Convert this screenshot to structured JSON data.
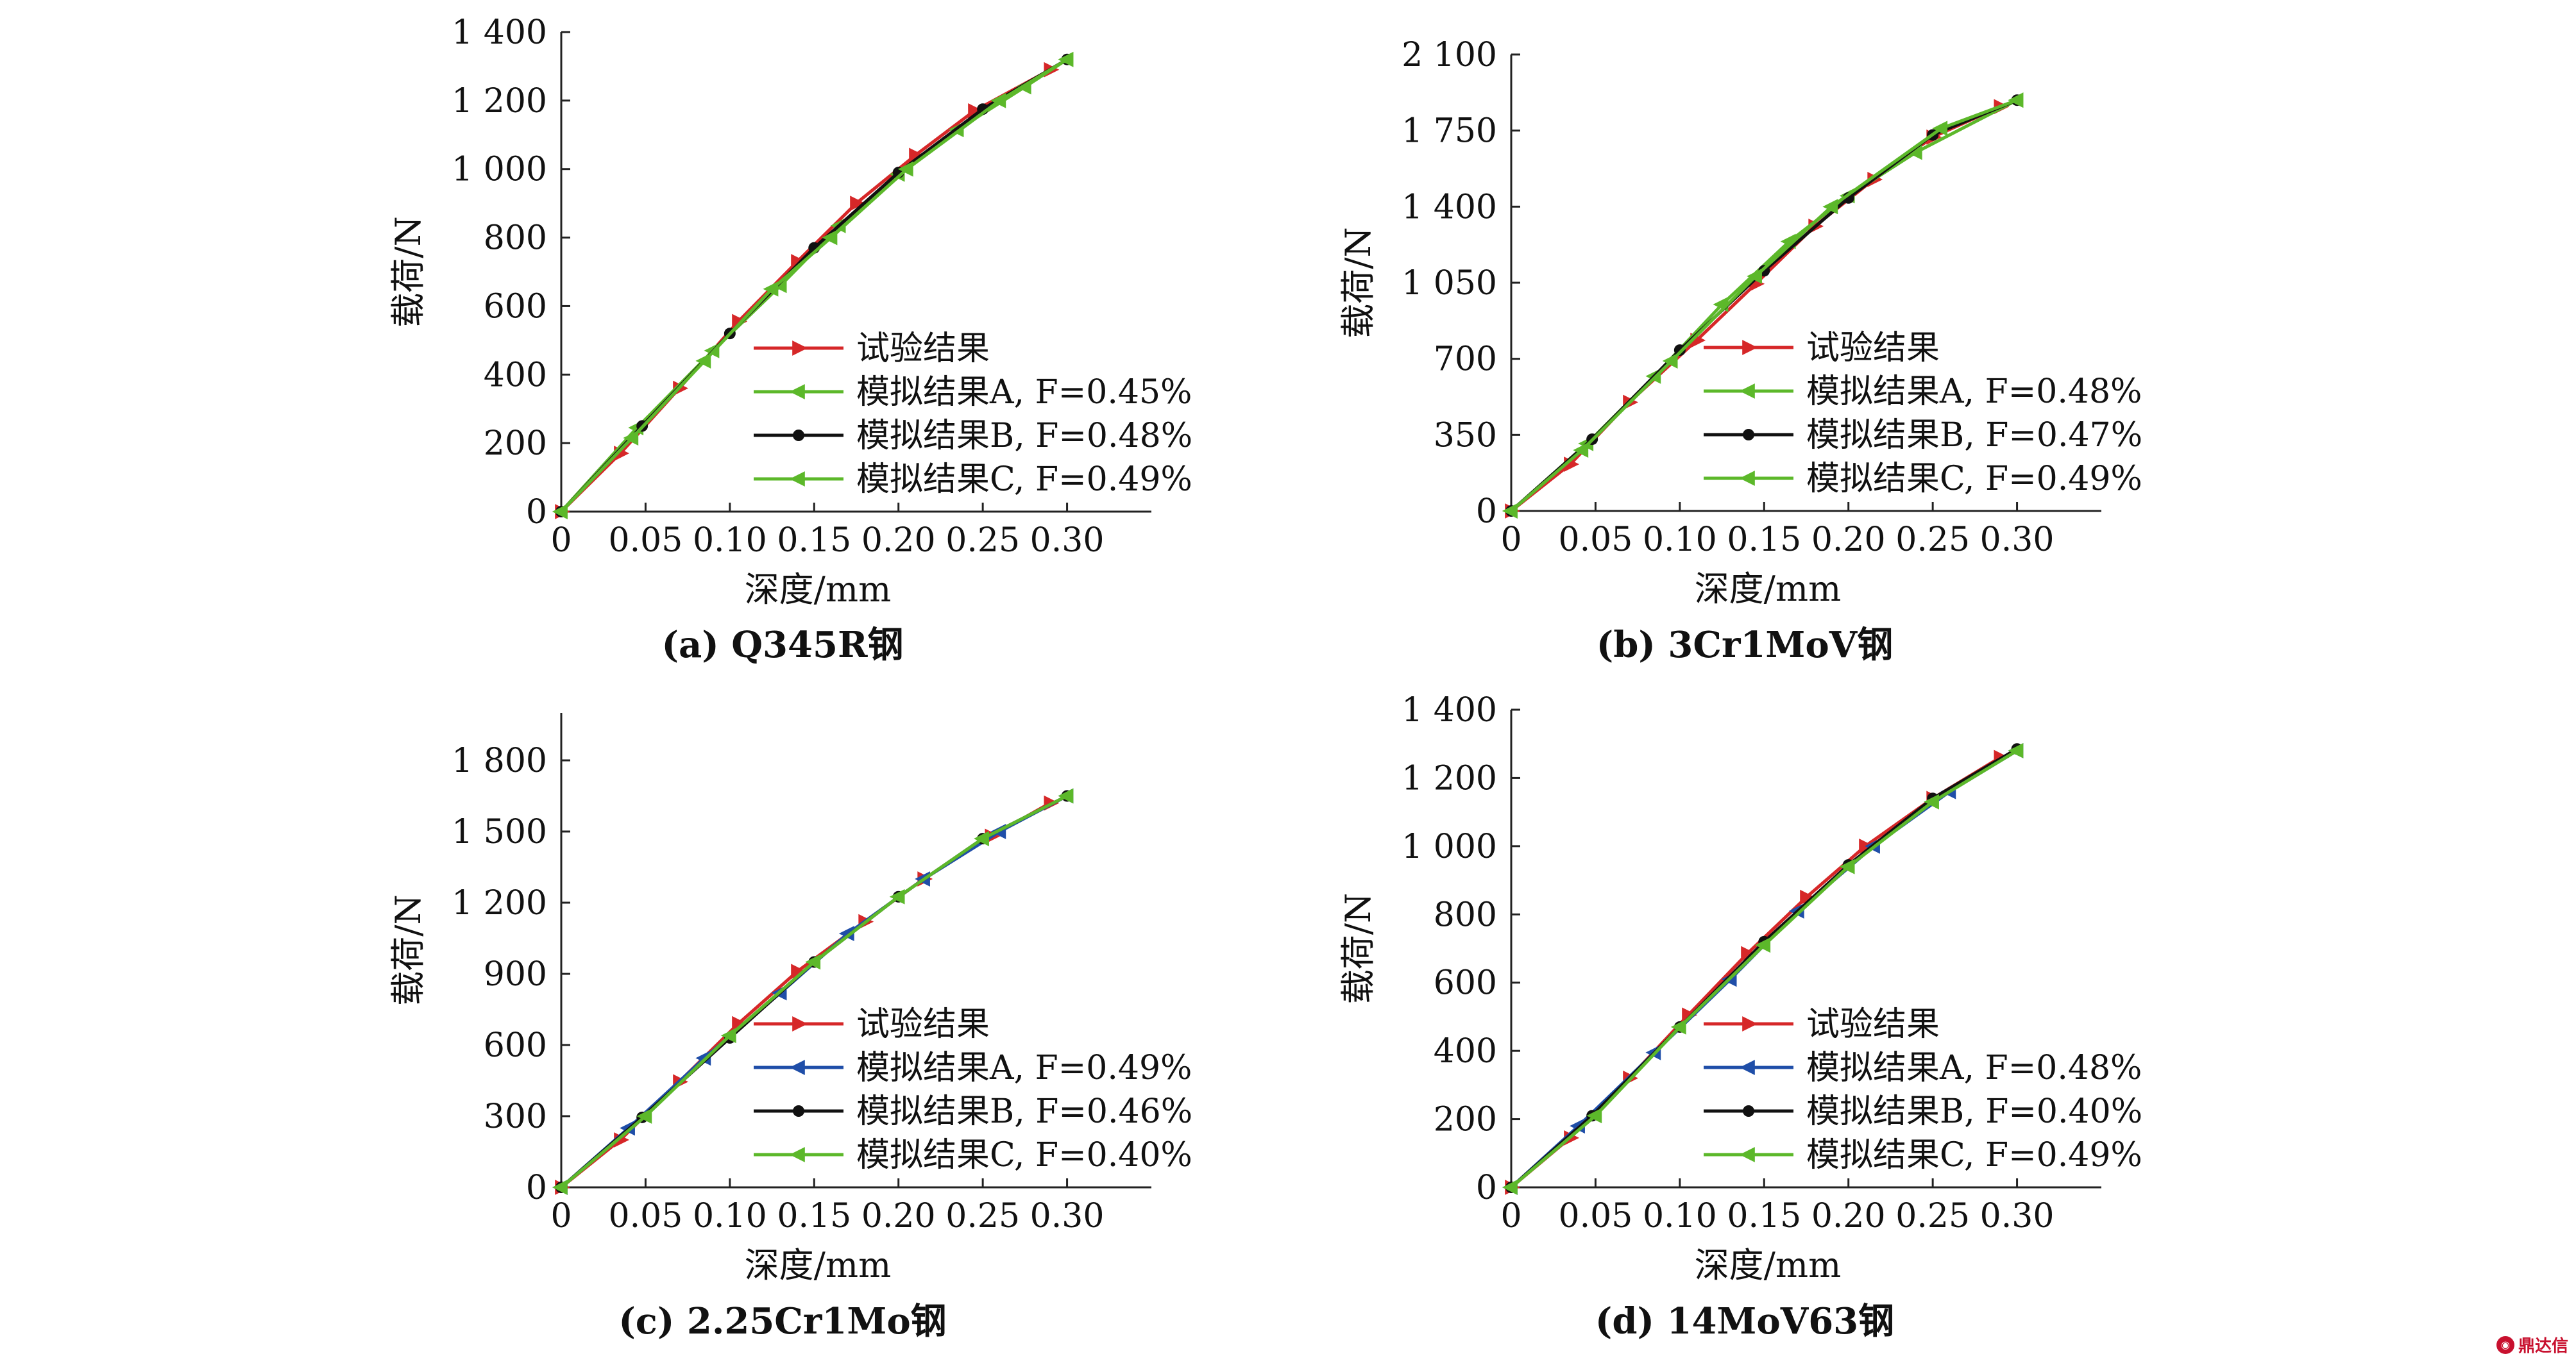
{
  "colors": {
    "red": "#d62728",
    "green": "#5cb82a",
    "black": "#111111",
    "blue": "#1f4ea8",
    "axis": "#222222"
  },
  "watermark": {
    "text": "鼎达信",
    "icon": "brand-logo-icon"
  },
  "chart_data": [
    {
      "type": "line",
      "caption": "(a) Q345R钢",
      "xlabel": "深度/mm",
      "ylabel": "载荷/N",
      "xlim": [
        0,
        0.35
      ],
      "ylim": [
        0,
        1400
      ],
      "xticks": [
        0,
        0.05,
        0.1,
        0.15,
        0.2,
        0.25,
        0.3
      ],
      "xtick_labels": [
        "0",
        "0.05",
        "0.10",
        "0.15",
        "0.20",
        "0.25",
        "0.30"
      ],
      "yticks": [
        0,
        200,
        400,
        600,
        800,
        1000,
        1200,
        1400
      ],
      "ytick_labels": [
        "0",
        "200",
        "400",
        "600",
        "800",
        "1 000",
        "1 200",
        "1 400"
      ],
      "grid": false,
      "legend_position": "lower-right",
      "series": [
        {
          "name": "试验结果",
          "color_key": "red",
          "marker": "triangle-right",
          "x": [
            0,
            0.035,
            0.07,
            0.105,
            0.14,
            0.175,
            0.21,
            0.245,
            0.29
          ],
          "y": [
            0,
            170,
            360,
            555,
            730,
            900,
            1040,
            1170,
            1290
          ]
        },
        {
          "name": "模拟结果A, F=0.45%",
          "color_key": "green",
          "marker": "triangle-left",
          "x": [
            0,
            0.045,
            0.09,
            0.13,
            0.165,
            0.2,
            0.235,
            0.275,
            0.3
          ],
          "y": [
            0,
            245,
            470,
            660,
            835,
            985,
            1115,
            1240,
            1320
          ]
        },
        {
          "name": "模拟结果B, F=0.48%",
          "color_key": "black",
          "marker": "dot",
          "x": [
            0,
            0.048,
            0.1,
            0.15,
            0.2,
            0.25,
            0.3
          ],
          "y": [
            0,
            250,
            520,
            770,
            990,
            1175,
            1320
          ]
        },
        {
          "name": "模拟结果C, F=0.49%",
          "color_key": "green",
          "marker": "triangle-left",
          "x": [
            0,
            0.042,
            0.085,
            0.125,
            0.16,
            0.205,
            0.26,
            0.3
          ],
          "y": [
            0,
            215,
            440,
            650,
            800,
            1000,
            1200,
            1320
          ]
        }
      ]
    },
    {
      "type": "line",
      "caption": "(b) 3Cr1MoV钢",
      "xlabel": "深度/mm",
      "ylabel": "载荷/N",
      "xlim": [
        0,
        0.35
      ],
      "ylim": [
        0,
        2100
      ],
      "xticks": [
        0,
        0.05,
        0.1,
        0.15,
        0.2,
        0.25,
        0.3
      ],
      "xtick_labels": [
        "0",
        "0.05",
        "0.10",
        "0.15",
        "0.20",
        "0.25",
        "0.30"
      ],
      "yticks": [
        0,
        350,
        700,
        1050,
        1400,
        1750,
        2100
      ],
      "ytick_labels": [
        "0",
        "350",
        "700",
        "1 050",
        "1 400",
        "1 750",
        "2 100"
      ],
      "grid": false,
      "legend_position": "lower-right",
      "series": [
        {
          "name": "试验结果",
          "color_key": "red",
          "marker": "triangle-right",
          "x": [
            0,
            0.035,
            0.07,
            0.11,
            0.145,
            0.18,
            0.215,
            0.25,
            0.29
          ],
          "y": [
            0,
            215,
            500,
            785,
            1045,
            1310,
            1525,
            1720,
            1860
          ]
        },
        {
          "name": "模拟结果A, F=0.48%",
          "color_key": "green",
          "marker": "triangle-left",
          "x": [
            0,
            0.045,
            0.085,
            0.125,
            0.165,
            0.2,
            0.24,
            0.3
          ],
          "y": [
            0,
            310,
            620,
            950,
            1240,
            1450,
            1650,
            1890
          ]
        },
        {
          "name": "模拟结果B, F=0.47%",
          "color_key": "black",
          "marker": "dot",
          "x": [
            0,
            0.048,
            0.1,
            0.15,
            0.2,
            0.25,
            0.3
          ],
          "y": [
            0,
            330,
            740,
            1105,
            1440,
            1730,
            1890
          ]
        },
        {
          "name": "模拟结果C, F=0.49%",
          "color_key": "green",
          "marker": "triangle-left",
          "x": [
            0,
            0.042,
            0.095,
            0.145,
            0.19,
            0.255,
            0.3
          ],
          "y": [
            0,
            280,
            690,
            1080,
            1400,
            1760,
            1890
          ]
        }
      ]
    },
    {
      "type": "line",
      "caption": "(c) 2.25Cr1Mo钢",
      "xlabel": "深度/mm",
      "ylabel": "载荷/N",
      "xlim": [
        0,
        0.35
      ],
      "ylim": [
        0,
        2000
      ],
      "xticks": [
        0,
        0.05,
        0.1,
        0.15,
        0.2,
        0.25,
        0.3
      ],
      "xtick_labels": [
        "0",
        "0.05",
        "0.10",
        "0.15",
        "0.20",
        "0.25",
        "0.30"
      ],
      "yticks": [
        0,
        300,
        600,
        900,
        1200,
        1500,
        1800
      ],
      "ytick_labels": [
        "0",
        "300",
        "600",
        "900",
        "1 200",
        "1 500",
        "1 800"
      ],
      "grid": false,
      "legend_position": "lower-right",
      "series": [
        {
          "name": "试验结果",
          "color_key": "red",
          "marker": "triangle-right",
          "x": [
            0,
            0.035,
            0.07,
            0.105,
            0.14,
            0.18,
            0.215,
            0.255,
            0.29
          ],
          "y": [
            0,
            200,
            445,
            690,
            910,
            1120,
            1300,
            1480,
            1620
          ]
        },
        {
          "name": "模拟结果A, F=0.49%",
          "color_key": "blue",
          "marker": "triangle-left",
          "x": [
            0,
            0.04,
            0.085,
            0.13,
            0.17,
            0.215,
            0.26,
            0.3
          ],
          "y": [
            0,
            250,
            545,
            820,
            1070,
            1300,
            1500,
            1650
          ]
        },
        {
          "name": "模拟结果B, F=0.46%",
          "color_key": "black",
          "marker": "dot",
          "x": [
            0,
            0.048,
            0.1,
            0.15,
            0.2,
            0.25,
            0.3
          ],
          "y": [
            0,
            295,
            630,
            950,
            1225,
            1470,
            1650
          ]
        },
        {
          "name": "模拟结果C, F=0.40%",
          "color_key": "green",
          "marker": "triangle-left",
          "x": [
            0,
            0.05,
            0.1,
            0.15,
            0.2,
            0.25,
            0.3
          ],
          "y": [
            0,
            300,
            640,
            950,
            1225,
            1470,
            1650
          ]
        }
      ]
    },
    {
      "type": "line",
      "caption": "(d) 14MoV63钢",
      "xlabel": "深度/mm",
      "ylabel": "载荷/N",
      "xlim": [
        0,
        0.35
      ],
      "ylim": [
        0,
        1400
      ],
      "xticks": [
        0,
        0.05,
        0.1,
        0.15,
        0.2,
        0.25,
        0.3
      ],
      "xtick_labels": [
        "0",
        "0.05",
        "0.10",
        "0.15",
        "0.20",
        "0.25",
        "0.30"
      ],
      "yticks": [
        0,
        200,
        400,
        600,
        800,
        1000,
        1200,
        1400
      ],
      "ytick_labels": [
        "0",
        "200",
        "400",
        "600",
        "800",
        "1 000",
        "1 200",
        "1 400"
      ],
      "grid": false,
      "legend_position": "lower-right",
      "series": [
        {
          "name": "试验结果",
          "color_key": "red",
          "marker": "triangle-right",
          "x": [
            0,
            0.035,
            0.07,
            0.105,
            0.14,
            0.175,
            0.21,
            0.25,
            0.29
          ],
          "y": [
            0,
            145,
            320,
            505,
            685,
            850,
            1000,
            1140,
            1260
          ]
        },
        {
          "name": "模拟结果A, F=0.48%",
          "color_key": "blue",
          "marker": "triangle-left",
          "x": [
            0,
            0.04,
            0.085,
            0.13,
            0.17,
            0.215,
            0.26,
            0.3
          ],
          "y": [
            0,
            180,
            395,
            610,
            810,
            1000,
            1160,
            1280
          ]
        },
        {
          "name": "模拟结果B, F=0.40%",
          "color_key": "black",
          "marker": "dot",
          "x": [
            0,
            0.048,
            0.1,
            0.15,
            0.2,
            0.25,
            0.3
          ],
          "y": [
            0,
            210,
            470,
            720,
            945,
            1140,
            1285
          ]
        },
        {
          "name": "模拟结果C, F=0.49%",
          "color_key": "green",
          "marker": "triangle-left",
          "x": [
            0,
            0.05,
            0.1,
            0.15,
            0.2,
            0.25,
            0.3
          ],
          "y": [
            0,
            210,
            470,
            710,
            940,
            1130,
            1280
          ]
        }
      ]
    }
  ]
}
